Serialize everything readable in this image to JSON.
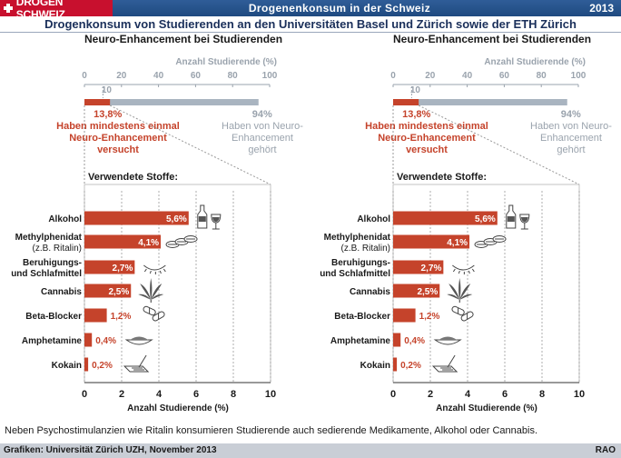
{
  "header": {
    "logo_text": "DROGEN SCHWEIZ",
    "series_title": "Drogenenkonsum in der Schweiz",
    "year": "2013",
    "headline": "Drogenkonsum von Studierenden an den Universitäten Basel und Zürich sowie der ETH Zürich"
  },
  "colors": {
    "accent": "#c5432b",
    "gray_bar": "#a9b4c0",
    "header_blue": "#2a5591",
    "logo_red": "#c8102e"
  },
  "chart_data": [
    {
      "type": "bar",
      "title": "Neuro-Enhancement bei Studierenden",
      "summary": {
        "xlabel": "Anzahl Studierende (%)",
        "ticks": [
          0,
          20,
          40,
          60,
          80,
          100
        ],
        "marker_label": "10",
        "marker_value": 10,
        "values": [
          13.8,
          94
        ],
        "value_labels": [
          "13,8%",
          "94%"
        ],
        "captions": [
          "Haben mindestens einmal Neuro-Enhancement versucht",
          "Haben von Neuro-Enhancement gehört"
        ]
      },
      "detail": {
        "heading": "Verwendete Stoffe:",
        "xlabel": "Anzahl Studierende (%)",
        "xlim": [
          0,
          10
        ],
        "ticks": [
          0,
          2,
          4,
          6,
          8,
          10
        ],
        "categories": [
          "Alkohol",
          "Methylphenidat",
          "Beruhigungs- und Schlafmittel",
          "Cannabis",
          "Beta-Blocker",
          "Amphetamine",
          "Kokain"
        ],
        "category_labels": [
          [
            "Alkohol"
          ],
          [
            "Methylphenidat",
            "(z.B. Ritalin)"
          ],
          [
            "Beruhigungs-",
            "und Schlafmittel"
          ],
          [
            "Cannabis"
          ],
          [
            "Beta-Blocker"
          ],
          [
            "Amphetamine"
          ],
          [
            "Kokain"
          ]
        ],
        "values": [
          5.6,
          4.1,
          2.7,
          2.5,
          1.2,
          0.4,
          0.2
        ],
        "value_labels": [
          "5,6%",
          "4,1%",
          "2,7%",
          "2,5%",
          "1,2%",
          "0,4%",
          "0,2%"
        ],
        "icons": [
          "wine-bottle-glass-icon",
          "pills-icon",
          "sleeping-eye-icon",
          "cannabis-leaf-icon",
          "capsules-icon",
          "powder-bowl-icon",
          "cocaine-lines-icon"
        ]
      }
    },
    {
      "type": "bar",
      "title": "Neuro-Enhancement bei Studierenden",
      "summary": {
        "xlabel": "Anzahl Studierende (%)",
        "ticks": [
          0,
          20,
          40,
          60,
          80,
          100
        ],
        "marker_label": "10",
        "marker_value": 10,
        "values": [
          13.8,
          94
        ],
        "value_labels": [
          "13,8%",
          "94%"
        ],
        "captions": [
          "Haben mindestens einmal Neuro-Enhancement versucht",
          "Haben von Neuro-Enhancement gehört"
        ]
      },
      "detail": {
        "heading": "Verwendete Stoffe:",
        "xlabel": "Anzahl Studierende (%)",
        "xlim": [
          0,
          10
        ],
        "ticks": [
          0,
          2,
          4,
          6,
          8,
          10
        ],
        "categories": [
          "Alkohol",
          "Methylphenidat",
          "Beruhigungs- und Schlafmittel",
          "Cannabis",
          "Beta-Blocker",
          "Amphetamine",
          "Kokain"
        ],
        "category_labels": [
          [
            "Alkohol"
          ],
          [
            "Methylphenidat",
            "(z.B. Ritalin)"
          ],
          [
            "Beruhigungs-",
            "und Schlafmittel"
          ],
          [
            "Cannabis"
          ],
          [
            "Beta-Blocker"
          ],
          [
            "Amphetamine"
          ],
          [
            "Kokain"
          ]
        ],
        "values": [
          5.6,
          4.1,
          2.7,
          2.5,
          1.2,
          0.4,
          0.2
        ],
        "value_labels": [
          "5,6%",
          "4,1%",
          "2,7%",
          "2,5%",
          "1,2%",
          "0,4%",
          "0,2%"
        ],
        "icons": [
          "wine-bottle-glass-icon",
          "pills-icon",
          "sleeping-eye-icon",
          "cannabis-leaf-icon",
          "capsules-icon",
          "powder-bowl-icon",
          "cocaine-lines-icon"
        ]
      }
    }
  ],
  "footnote": "Neben Psychostimulanzien wie Ritalin konsumieren Studierende auch sedierende Medikamente, Alkohol oder Cannabis.",
  "footer": {
    "source": "Grafiken: Universität Zürich UZH, November 2013",
    "agency": "RAO"
  }
}
